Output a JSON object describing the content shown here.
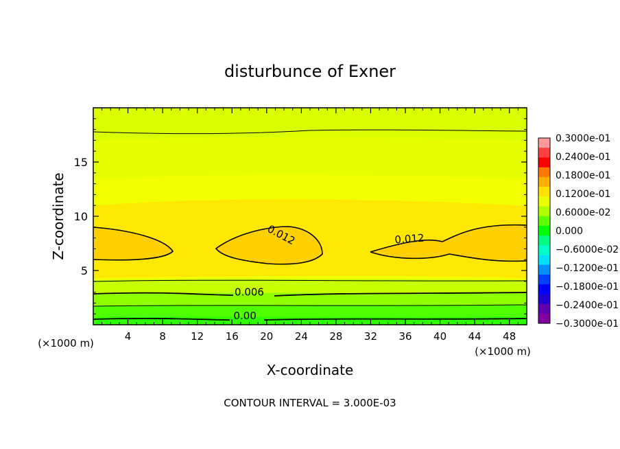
{
  "chart_data": {
    "type": "contour",
    "title": "disturbunce of Exner",
    "xlabel": "X-coordinate",
    "ylabel": "Z-coordinate",
    "x_unit_left": "(×1000 m)",
    "x_unit_right": "(×1000 m)",
    "footer": "CONTOUR INTERVAL = 3.000E-03",
    "xlim": [
      0,
      50
    ],
    "ylim": [
      0,
      20
    ],
    "x_ticks": [
      4,
      8,
      12,
      16,
      20,
      24,
      28,
      32,
      36,
      40,
      44,
      48
    ],
    "y_ticks": [
      5,
      10,
      15
    ],
    "contour_labels": [
      {
        "text": "0.012",
        "x": 21.5,
        "z": 8.0
      },
      {
        "text": "0.012",
        "x": 36.5,
        "z": 7.6
      },
      {
        "text": "0.006",
        "x": 18.0,
        "z": 2.7
      },
      {
        "text": "0.00",
        "x": 17.5,
        "z": 0.5
      }
    ],
    "colorbar": {
      "labels": [
        "0.3000e-01",
        "0.2400e-01",
        "0.1800e-01",
        "0.1200e-01",
        "0.6000e-02",
        "0.000",
        "−0.6000e-02",
        "−0.1200e-01",
        "−0.1800e-01",
        "−0.2400e-01",
        "−0.3000e-01"
      ],
      "colors_top_to_bottom": [
        "#ff9a9a",
        "#ff4040",
        "#ff0000",
        "#ff7a00",
        "#ffb000",
        "#ffe000",
        "#e8ff00",
        "#b0ff00",
        "#60ff00",
        "#00ff00",
        "#00ff80",
        "#00ffc8",
        "#00e0ff",
        "#0090ff",
        "#0040ff",
        "#0000ff",
        "#2000d0",
        "#6000b0",
        "#8000a0"
      ]
    },
    "field_colors": {
      "top": "#dcff00",
      "mid_high": "#f2ff00",
      "core": "#ffe800",
      "peak": "#ffd000",
      "low1": "#c8ff00",
      "low2": "#90ff00",
      "low3": "#50ff00",
      "bottom": "#30ff00"
    }
  }
}
